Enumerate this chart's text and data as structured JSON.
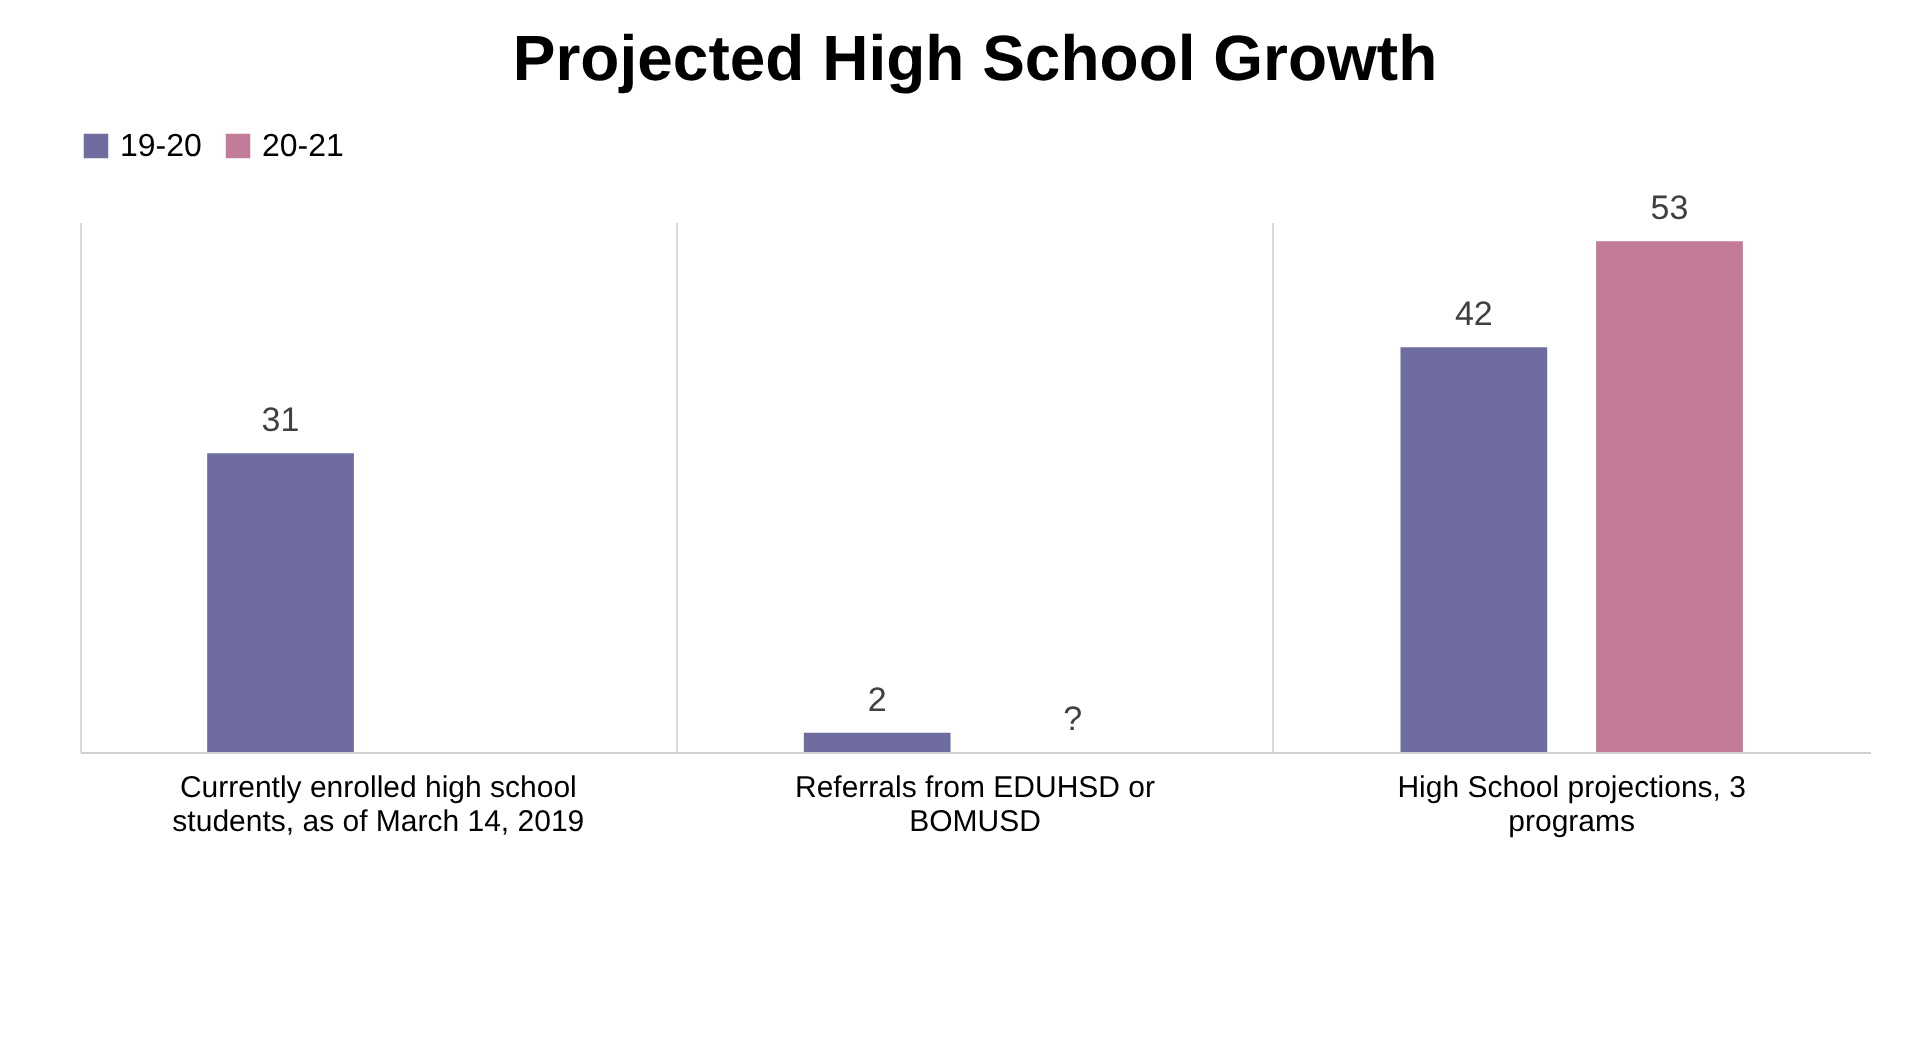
{
  "chart_data": {
    "type": "bar",
    "title": "Projected High School Growth",
    "categories": [
      "Currently enrolled high school students, as of March 14, 2019",
      "Referrals from EDUHSD or BOMUSD",
      "High School projections, 3 programs"
    ],
    "series": [
      {
        "name": "19-20",
        "color": "#6f6ca0",
        "values": [
          31,
          2,
          42
        ],
        "value_labels": [
          "31",
          "2",
          "42"
        ]
      },
      {
        "name": "20-21",
        "color": "#c27b98",
        "values": [
          null,
          null,
          53
        ],
        "value_labels": [
          null,
          "?",
          "53"
        ]
      }
    ],
    "legend": "top",
    "grid": "x"
  }
}
